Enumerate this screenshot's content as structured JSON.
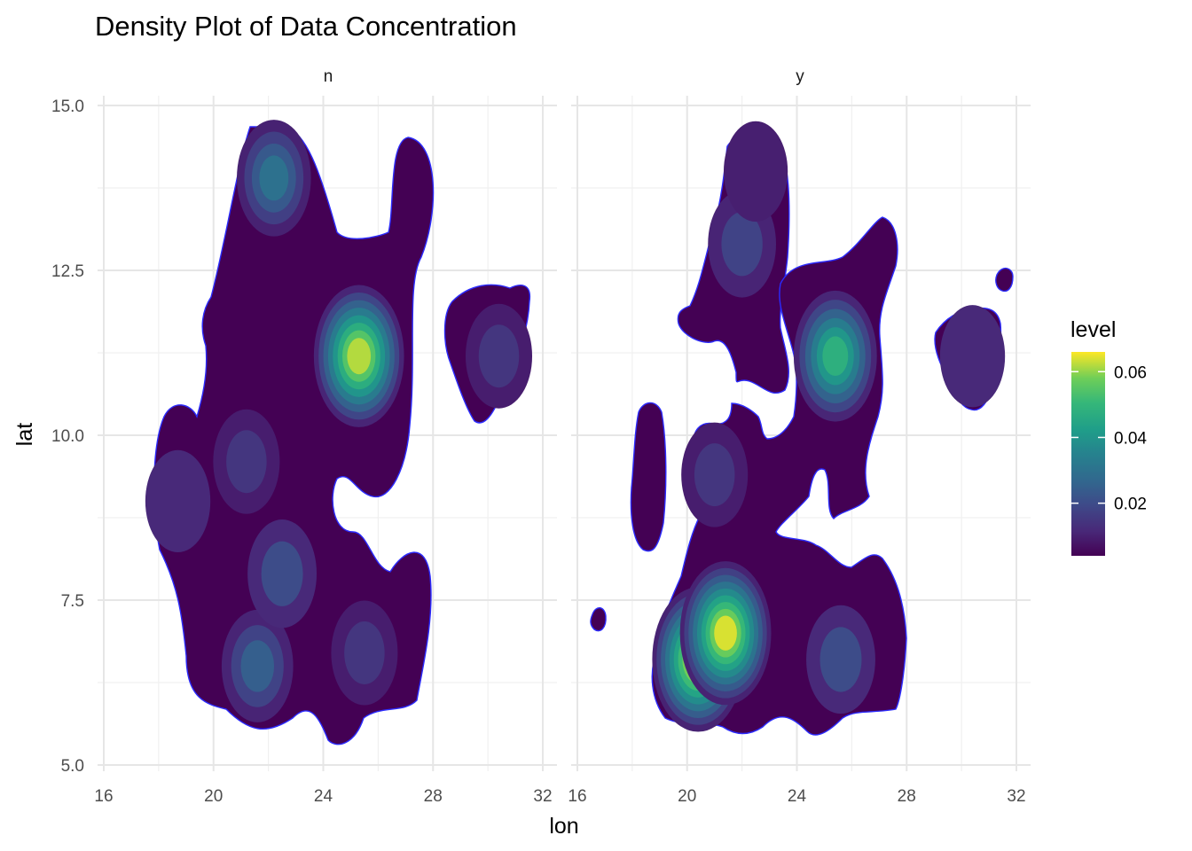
{
  "chart_data": {
    "type": "density-contour",
    "title": "Density Plot of Data Concentration",
    "xlabel": "lon",
    "ylabel": "lat",
    "xlim": [
      16,
      32
    ],
    "ylim": [
      5,
      15
    ],
    "x_ticks": [
      16,
      20,
      24,
      28,
      32
    ],
    "y_ticks": [
      5.0,
      7.5,
      10.0,
      12.5,
      15.0
    ],
    "y_tick_labels": [
      "5.0",
      "7.5",
      "10.0",
      "12.5",
      "15.0"
    ],
    "grid": true,
    "facets": [
      {
        "label": "n",
        "hotspots": [
          {
            "lon": 25.3,
            "lat": 11.2,
            "level": 0.062
          },
          {
            "lon": 22.2,
            "lat": 13.9,
            "level": 0.03
          },
          {
            "lon": 21.6,
            "lat": 6.5,
            "level": 0.025
          },
          {
            "lon": 22.5,
            "lat": 7.9,
            "level": 0.02
          },
          {
            "lon": 21.2,
            "lat": 9.6,
            "level": 0.015
          },
          {
            "lon": 25.5,
            "lat": 6.7,
            "level": 0.015
          },
          {
            "lon": 18.7,
            "lat": 9.0,
            "level": 0.012
          },
          {
            "lon": 30.4,
            "lat": 11.2,
            "level": 0.015
          }
        ]
      },
      {
        "label": "y",
        "hotspots": [
          {
            "lon": 20.4,
            "lat": 6.6,
            "level": 0.065
          },
          {
            "lon": 21.4,
            "lat": 7.0,
            "level": 0.064
          },
          {
            "lon": 25.4,
            "lat": 11.2,
            "level": 0.048
          },
          {
            "lon": 22.0,
            "lat": 12.9,
            "level": 0.018
          },
          {
            "lon": 25.6,
            "lat": 6.6,
            "level": 0.02
          },
          {
            "lon": 21.0,
            "lat": 9.4,
            "level": 0.015
          },
          {
            "lon": 30.4,
            "lat": 11.2,
            "level": 0.012
          },
          {
            "lon": 22.5,
            "lat": 14.0,
            "level": 0.01
          }
        ]
      }
    ],
    "legend": {
      "title": "level",
      "position": "right",
      "ticks": [
        0.02,
        0.04,
        0.06
      ],
      "tick_labels": [
        "0.02",
        "0.04",
        "0.06"
      ],
      "range": [
        0.004,
        0.066
      ],
      "colormap": "viridis"
    },
    "colors": {
      "outline": "#2b2bff",
      "low": "#440154",
      "mid": "#21908c",
      "high": "#fde725"
    }
  }
}
